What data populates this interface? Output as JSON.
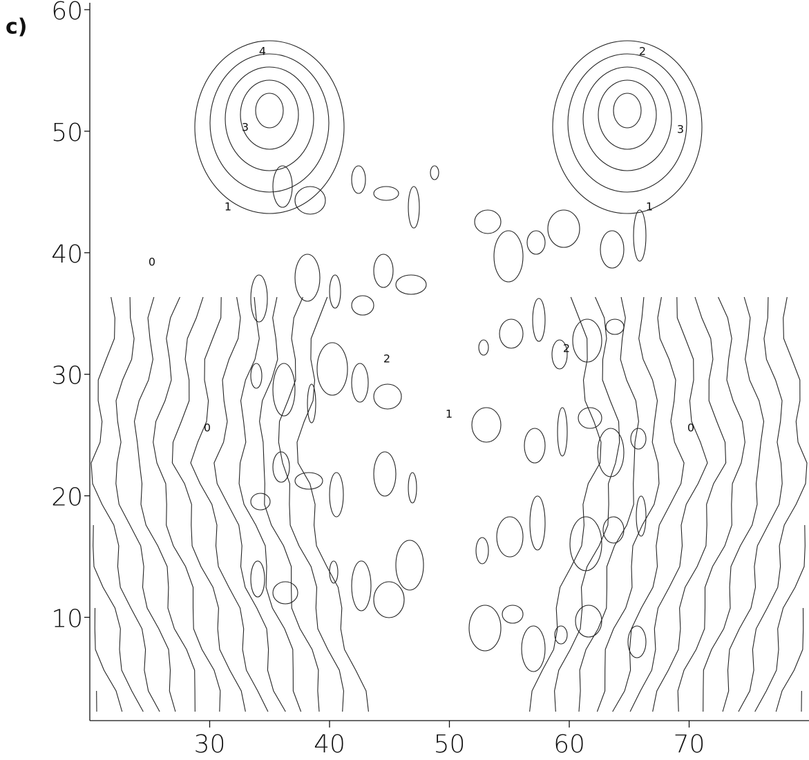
{
  "chart_data": {
    "type": "contour",
    "panel_label": "c)",
    "contour_levels": [
      0,
      1,
      2,
      3,
      4,
      5
    ],
    "xlim": [
      20,
      80
    ],
    "xticks": [
      30,
      40,
      50,
      60,
      70
    ],
    "ylim": [
      1.5,
      60
    ],
    "yticks": [
      10,
      20,
      30,
      40,
      50,
      60
    ]
  }
}
